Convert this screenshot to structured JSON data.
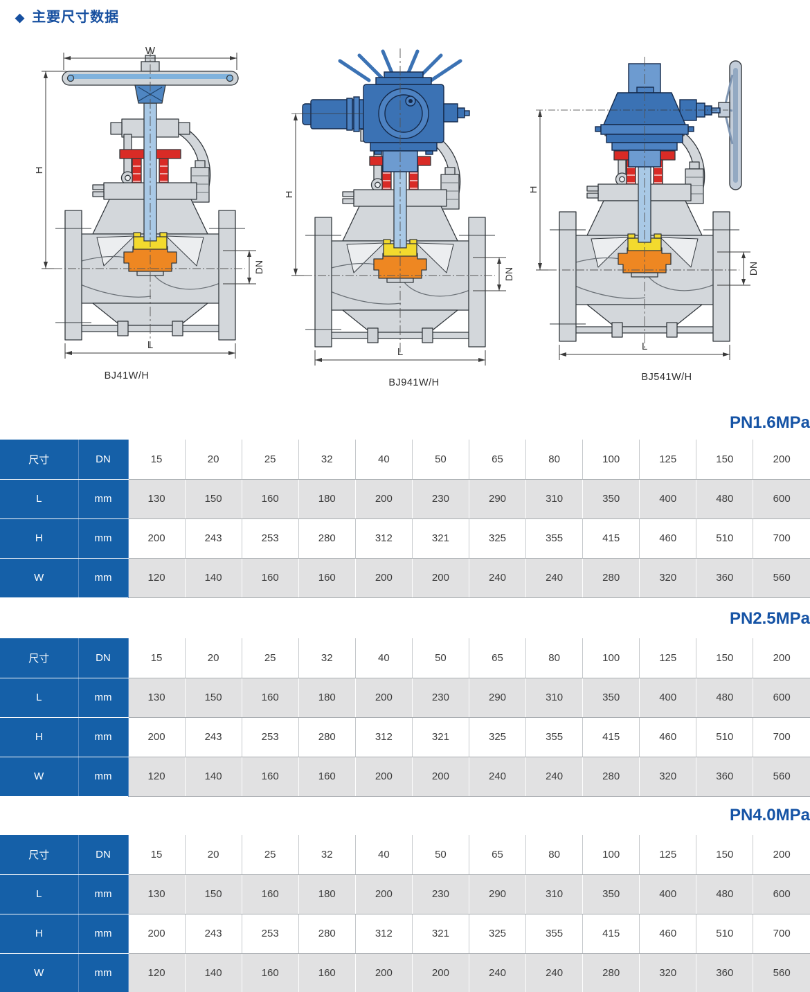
{
  "page": {
    "title": "主要尺寸数据",
    "bullet": "◆"
  },
  "dim_labels": {
    "w": "W",
    "h": "H",
    "dn": "DN",
    "l": "L"
  },
  "figures": [
    {
      "model": "BJ41W/H",
      "operator": "handwheel"
    },
    {
      "model": "BJ941W/H",
      "operator": "electric-actuator"
    },
    {
      "model": "BJ541W/H",
      "operator": "bevel-gear"
    }
  ],
  "colors": {
    "accent_blue": "#1560a8",
    "heading_blue": "#1553a5",
    "row_gray": "#e1e1e2",
    "valve_body_gray": "#d3d7db",
    "valve_blue": "#3b72b4",
    "stem_blue": "#a9c9e6",
    "gland_red": "#d92b26",
    "disc_orange": "#ee8722",
    "seat_yellow": "#f3da2e"
  },
  "tables": [
    {
      "title": "PN1.6MPa",
      "rows": [
        {
          "label": "尺寸",
          "unit": "DN",
          "values": [
            15,
            20,
            25,
            32,
            40,
            50,
            65,
            80,
            100,
            125,
            150,
            200
          ]
        },
        {
          "label": "L",
          "unit": "mm",
          "values": [
            130,
            150,
            160,
            180,
            200,
            230,
            290,
            310,
            350,
            400,
            480,
            600
          ]
        },
        {
          "label": "H",
          "unit": "mm",
          "values": [
            200,
            243,
            253,
            280,
            312,
            321,
            325,
            355,
            415,
            460,
            510,
            700
          ]
        },
        {
          "label": "W",
          "unit": "mm",
          "values": [
            120,
            140,
            160,
            160,
            200,
            200,
            240,
            240,
            280,
            320,
            360,
            560
          ]
        }
      ]
    },
    {
      "title": "PN2.5MPa",
      "rows": [
        {
          "label": "尺寸",
          "unit": "DN",
          "values": [
            15,
            20,
            25,
            32,
            40,
            50,
            65,
            80,
            100,
            125,
            150,
            200
          ]
        },
        {
          "label": "L",
          "unit": "mm",
          "values": [
            130,
            150,
            160,
            180,
            200,
            230,
            290,
            310,
            350,
            400,
            480,
            600
          ]
        },
        {
          "label": "H",
          "unit": "mm",
          "values": [
            200,
            243,
            253,
            280,
            312,
            321,
            325,
            355,
            415,
            460,
            510,
            700
          ]
        },
        {
          "label": "W",
          "unit": "mm",
          "values": [
            120,
            140,
            160,
            160,
            200,
            200,
            240,
            240,
            280,
            320,
            360,
            560
          ]
        }
      ]
    },
    {
      "title": "PN4.0MPa",
      "rows": [
        {
          "label": "尺寸",
          "unit": "DN",
          "values": [
            15,
            20,
            25,
            32,
            40,
            50,
            65,
            80,
            100,
            125,
            150,
            200
          ]
        },
        {
          "label": "L",
          "unit": "mm",
          "values": [
            130,
            150,
            160,
            180,
            200,
            230,
            290,
            310,
            350,
            400,
            480,
            600
          ]
        },
        {
          "label": "H",
          "unit": "mm",
          "values": [
            200,
            243,
            253,
            280,
            312,
            321,
            325,
            355,
            415,
            460,
            510,
            700
          ]
        },
        {
          "label": "W",
          "unit": "mm",
          "values": [
            120,
            140,
            160,
            160,
            200,
            200,
            240,
            240,
            280,
            320,
            360,
            560
          ]
        }
      ]
    }
  ]
}
